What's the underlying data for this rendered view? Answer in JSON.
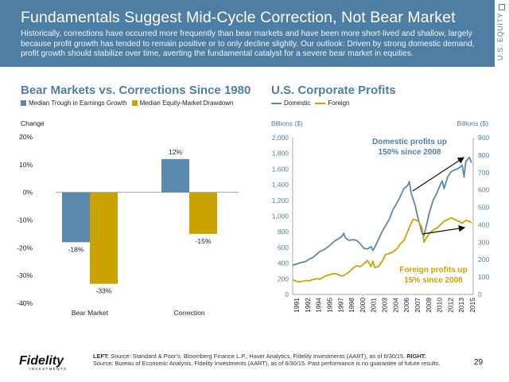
{
  "header": {
    "title": "Fundamentals Suggest Mid-Cycle Correction, Not Bear Market",
    "subtitle": "Historically, corrections have occurred more frequently than bear markets and have been more short-lived and shallow, largely because profit growth has tended to remain positive or to only decline slightly. Our outlook: Driven by strong domestic demand, profit growth should stabilize over time, averting the fundamental catalyst for a severe bear market in equities."
  },
  "side_label": "U.S. EQUITY",
  "colors": {
    "header_bg": "#4f7ea4",
    "blue": "#5b89ad",
    "gold": "#c9a400",
    "accent": "#4f7ea4"
  },
  "chart_data": [
    {
      "type": "bar",
      "title": "Bear Markets vs. Corrections Since 1980",
      "ylabel": "Change",
      "categories": [
        "Bear Market",
        "Correction"
      ],
      "series": [
        {
          "name": "Median Trough in Earnings Growth",
          "values": [
            -18,
            12
          ],
          "labels": [
            "-18%",
            "12%"
          ]
        },
        {
          "name": "Median Equity-Market Drawdown",
          "values": [
            -33,
            -15
          ],
          "labels": [
            "-33%",
            "-15%"
          ]
        }
      ],
      "ylim": [
        -40,
        20
      ],
      "yticks": [
        20,
        10,
        0,
        -10,
        -20,
        -30,
        -40
      ],
      "ytick_labels": [
        "20%",
        "10%",
        "0%",
        "-10%",
        "-20%",
        "-30%",
        "-40%"
      ],
      "grid": false,
      "legend": "top"
    },
    {
      "type": "line",
      "title": "U.S. Corporate Profits",
      "ylabel_left": "Billions ($)",
      "ylabel_right": "Billions ($)",
      "ylim_left": [
        0,
        2000
      ],
      "ylim_right": [
        0,
        900
      ],
      "yticks_left": [
        "0",
        "200",
        "400",
        "600",
        "800",
        "1,000",
        "1,200",
        "1,400",
        "1,600",
        "1,800",
        "2,000"
      ],
      "yticks_right": [
        "0",
        "100",
        "200",
        "300",
        "400",
        "500",
        "600",
        "700",
        "800",
        "900"
      ],
      "x_ticks": [
        "1991",
        "1992",
        "1994",
        "1995",
        "1997",
        "1998",
        "2000",
        "2001",
        "2003",
        "2004",
        "2006",
        "2007",
        "2009",
        "2010",
        "2012",
        "2013",
        "2015"
      ],
      "legend": "top",
      "series": [
        {
          "name": "Domestic",
          "axis": "left",
          "x": [
            1990.75,
            1991.0,
            1991.5,
            1992.0,
            1992.5,
            1993.0,
            1993.5,
            1994.0,
            1994.5,
            1995.0,
            1995.5,
            1996.0,
            1996.5,
            1997.0,
            1997.5,
            1997.75,
            1998.0,
            1998.5,
            1999.0,
            1999.5,
            2000.0,
            2000.5,
            2001.0,
            2001.5,
            2001.75,
            2002.0,
            2002.5,
            2003.0,
            2003.5,
            2004.0,
            2004.5,
            2005.0,
            2005.5,
            2006.0,
            2006.5,
            2006.75,
            2007.0,
            2007.5,
            2008.0,
            2008.5,
            2008.75,
            2009.0,
            2009.5,
            2010.0,
            2010.5,
            2011.0,
            2011.25,
            2011.5,
            2012.0,
            2012.5,
            2013.0,
            2013.5,
            2014.0,
            2014.25,
            2014.5,
            2015.0,
            2015.25
          ],
          "values": [
            380,
            380,
            395,
            410,
            420,
            450,
            470,
            510,
            550,
            570,
            600,
            640,
            680,
            710,
            740,
            780,
            720,
            690,
            700,
            690,
            650,
            590,
            580,
            610,
            560,
            600,
            700,
            800,
            880,
            960,
            1080,
            1160,
            1250,
            1350,
            1390,
            1440,
            1290,
            1150,
            950,
            780,
            750,
            850,
            1050,
            1200,
            1290,
            1400,
            1450,
            1350,
            1500,
            1570,
            1590,
            1610,
            1650,
            1500,
            1700,
            1750,
            1680
          ]
        },
        {
          "name": "Foreign",
          "axis": "right",
          "x": [
            1990.75,
            1991.0,
            1991.5,
            1992.0,
            1992.5,
            1993.0,
            1993.5,
            1994.0,
            1994.5,
            1995.0,
            1995.5,
            1996.0,
            1996.5,
            1997.0,
            1997.5,
            1998.0,
            1998.5,
            1999.0,
            1999.5,
            2000.0,
            2000.5,
            2001.0,
            2001.5,
            2001.75,
            2002.0,
            2002.5,
            2003.0,
            2003.5,
            2004.0,
            2004.5,
            2005.0,
            2005.5,
            2006.0,
            2006.5,
            2007.0,
            2007.25,
            2007.5,
            2008.0,
            2008.5,
            2008.75,
            2009.0,
            2009.5,
            2010.0,
            2010.5,
            2011.0,
            2011.5,
            2012.0,
            2012.5,
            2013.0,
            2013.5,
            2014.0,
            2014.5,
            2015.0,
            2015.25
          ],
          "values": [
            85,
            80,
            72,
            75,
            80,
            78,
            85,
            90,
            88,
            100,
            110,
            115,
            120,
            115,
            105,
            115,
            130,
            150,
            165,
            160,
            175,
            195,
            160,
            190,
            155,
            160,
            190,
            230,
            235,
            245,
            260,
            290,
            310,
            360,
            410,
            430,
            430,
            420,
            380,
            300,
            320,
            350,
            370,
            380,
            400,
            420,
            430,
            440,
            430,
            420,
            410,
            425,
            420,
            410
          ]
        }
      ],
      "annotations": [
        {
          "text_lines": [
            "Domestic profits up",
            "150% since 2008"
          ],
          "color": "#4f7ea4"
        },
        {
          "text_lines": [
            "Foreign profits up",
            "15% since 2008"
          ],
          "color": "#c9a400"
        }
      ]
    }
  ],
  "footer": {
    "logo_text": "Fidelity",
    "logo_subtext": "INVESTMENTS",
    "left_label": "LEFT:",
    "left_text": " Source: Standard & Poor’s, Bloomberg Finance L.P., Haver Analytics, Fidelity Investments (AART), as of 6/30/15. ",
    "right_label": "RIGHT:",
    "right_text": " Source: Bureau of Economic Analysis, Fidelity Investments (AART), as of 6/30/15. Past performance is no guarantee of future results.",
    "page_number": "29"
  }
}
